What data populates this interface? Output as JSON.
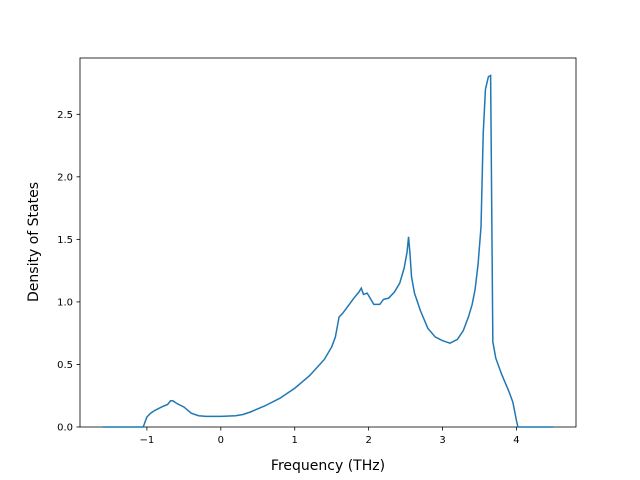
{
  "chart_data": {
    "type": "line",
    "xlabel": "Frequency (THz)",
    "ylabel": "Density of States",
    "x": [
      -1.6,
      -1.05,
      -1.0,
      -0.95,
      -0.9,
      -0.8,
      -0.72,
      -0.68,
      -0.65,
      -0.6,
      -0.5,
      -0.4,
      -0.3,
      -0.2,
      0,
      0.2,
      0.3,
      0.4,
      0.6,
      0.8,
      0.9,
      1.0,
      1.2,
      1.4,
      1.5,
      1.55,
      1.6,
      1.65,
      1.7,
      1.8,
      1.87,
      1.9,
      1.93,
      1.98,
      2.02,
      2.07,
      2.15,
      2.2,
      2.27,
      2.35,
      2.42,
      2.48,
      2.52,
      2.54,
      2.56,
      2.58,
      2.62,
      2.7,
      2.8,
      2.9,
      3.0,
      3.05,
      3.1,
      3.2,
      3.28,
      3.35,
      3.4,
      3.44,
      3.48,
      3.52,
      3.55,
      3.58,
      3.62,
      3.65,
      3.68,
      3.72,
      3.8,
      3.9,
      3.95,
      4.0,
      4.02,
      4.5
    ],
    "series": [
      {
        "color": "#1f77b4",
        "values": [
          0,
          0,
          0.08,
          0.11,
          0.13,
          0.16,
          0.18,
          0.21,
          0.21,
          0.19,
          0.16,
          0.11,
          0.09,
          0.085,
          0.085,
          0.09,
          0.1,
          0.12,
          0.17,
          0.23,
          0.27,
          0.31,
          0.41,
          0.54,
          0.64,
          0.72,
          0.88,
          0.91,
          0.95,
          1.03,
          1.08,
          1.11,
          1.06,
          1.07,
          1.03,
          0.98,
          0.98,
          1.02,
          1.03,
          1.08,
          1.15,
          1.27,
          1.4,
          1.52,
          1.38,
          1.2,
          1.07,
          0.93,
          0.79,
          0.72,
          0.69,
          0.68,
          0.67,
          0.7,
          0.77,
          0.88,
          0.98,
          1.1,
          1.3,
          1.6,
          2.35,
          2.7,
          2.8,
          2.81,
          0.68,
          0.55,
          0.42,
          0.28,
          0.2,
          0.05,
          0,
          0
        ]
      }
    ],
    "xlim": [
      -1.905,
      4.805
    ],
    "ylim": [
      0,
      2.95
    ],
    "xticks": [
      {
        "value": -1,
        "label": "−1"
      },
      0,
      1,
      2,
      3,
      4
    ],
    "yticks": [
      {
        "value": 0,
        "label": "0.0"
      },
      {
        "value": 0.5,
        "label": "0.5"
      },
      {
        "value": 1,
        "label": "1.0"
      },
      {
        "value": 1.5,
        "label": "1.5"
      },
      {
        "value": 2,
        "label": "2.0"
      },
      {
        "value": 2.5,
        "label": "2.5"
      }
    ]
  }
}
